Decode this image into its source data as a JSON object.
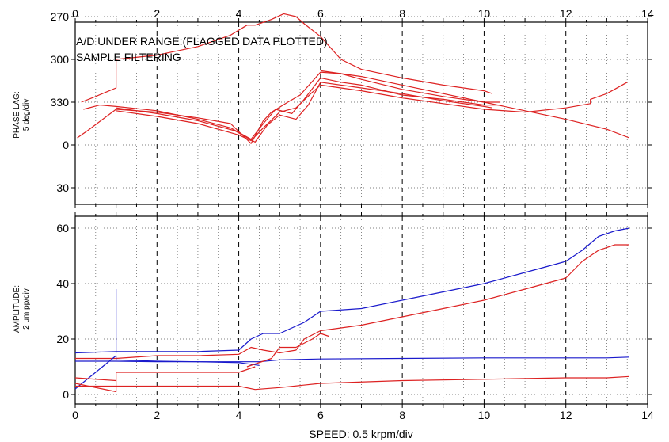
{
  "chart_data": [
    {
      "type": "line",
      "panel": "phase",
      "ylabel": "PHASE LAG:",
      "ylabel_sub": "5 deg/div",
      "annotations": [
        "A/D UNDER RANGE:(FLAGGED DATA PLOTTED)",
        "SAMPLE FILTERING"
      ],
      "x_ticks": [
        "0",
        "2",
        "4",
        "6",
        "8",
        "10",
        "12",
        "14"
      ],
      "xlim": [
        0,
        14
      ],
      "y_tick_labels": [
        "270",
        "300",
        "330",
        "0",
        "30"
      ],
      "y_axis_reversed": true,
      "series": [
        {
          "color": "#dd2222",
          "x": [
            0.15,
            0.5,
            1.0,
            1.0,
            2.0,
            3.0,
            3.8,
            4.2,
            4.4,
            4.8,
            5.1,
            5.4,
            5.6,
            6.0,
            6.5,
            7.0,
            8.0,
            9.0,
            10.0,
            10.2
          ],
          "y": [
            330,
            326,
            320,
            300,
            297,
            291,
            283,
            276,
            276,
            272,
            268,
            270,
            275,
            284,
            300,
            307,
            313,
            318,
            322,
            324
          ]
        },
        {
          "color": "#dd2222",
          "x": [
            0.05,
            0.3,
            1.0,
            2.0,
            3.0,
            3.8,
            4.3,
            4.6,
            4.8,
            5.2,
            5.5,
            6.0,
            6.5,
            7.0,
            8.0,
            9.0,
            10.0,
            10.4
          ],
          "y": [
            355,
            350,
            335,
            337,
            341,
            345,
            359,
            343,
            337,
            330,
            325,
            309,
            310,
            314,
            321,
            326,
            330,
            330
          ]
        },
        {
          "color": "#dd2222",
          "x": [
            0.2,
            0.6,
            1.0,
            2.0,
            3.0,
            3.8,
            4.3,
            4.6,
            4.9,
            5.3,
            5.6,
            6.0,
            6.5,
            7.0,
            8.0,
            9.0,
            10.0,
            10.4
          ],
          "y": [
            335,
            332,
            333,
            336,
            342,
            348,
            356,
            345,
            335,
            338,
            328,
            313,
            316,
            318,
            325,
            328,
            332,
            332
          ]
        },
        {
          "color": "#dd2222",
          "x": [
            1.0,
            2.0,
            3.0,
            3.9,
            4.4,
            4.7,
            5.0,
            5.4,
            5.7,
            6.0,
            7.0,
            8.0,
            9.0,
            10.0,
            10.2
          ],
          "y": [
            334,
            338,
            343,
            350,
            358,
            346,
            339,
            342,
            332,
            316,
            320,
            324,
            329,
            333,
            334
          ]
        },
        {
          "color": "#dd2222",
          "x": [
            1.0,
            2.0,
            3.0,
            4.0,
            4.3,
            4.6,
            5.0,
            5.4,
            5.8,
            6.0,
            7.0,
            8.0,
            9.0,
            10.0,
            11.0,
            12.0,
            12.6,
            12.6,
            13.0,
            13.5
          ],
          "y": [
            336,
            340,
            345,
            353,
            357,
            348,
            337,
            334,
            323,
            318,
            322,
            327,
            331,
            335,
            337,
            334,
            331,
            328,
            324,
            316
          ]
        },
        {
          "color": "#dd2222",
          "x": [
            6.0,
            7.0,
            8.0,
            9.0,
            10.0,
            11.0,
            12.0,
            13.0,
            13.55
          ],
          "y": [
            308,
            312,
            318,
            324,
            330,
            336,
            342,
            349,
            355
          ]
        }
      ]
    },
    {
      "type": "line",
      "panel": "amplitude",
      "ylabel": "AMPLITUDE:",
      "ylabel_sub": "2 um pp/div",
      "x_ticks": [
        "0",
        "2",
        "4",
        "6",
        "8",
        "10",
        "12",
        "14"
      ],
      "xlim": [
        0,
        14
      ],
      "y_tick_labels": [
        "0",
        "20",
        "40",
        "60"
      ],
      "ylim": [
        -2,
        62
      ],
      "xlabel": "SPEED: 0.5 krpm/div",
      "series": [
        {
          "color": "#1a1acc",
          "x": [
            0.0,
            1.0,
            2.0,
            3.0,
            4.0,
            4.3,
            4.6,
            5.0,
            5.3,
            5.6,
            6.0,
            7.0,
            8.0,
            9.0,
            10.0,
            11.0,
            12.0,
            12.4,
            12.8,
            13.2,
            13.55
          ],
          "y": [
            15,
            15.5,
            15.5,
            15.5,
            16,
            20,
            22,
            22,
            24,
            26,
            30,
            31,
            34,
            37,
            40,
            44,
            48,
            52,
            57,
            59,
            60
          ]
        },
        {
          "color": "#dd2222",
          "x": [
            0.0,
            1.0,
            2.0,
            3.0,
            4.0,
            4.3,
            4.6,
            5.0,
            5.4,
            5.6,
            6.0,
            7.0,
            8.0,
            9.0,
            10.0,
            11.0,
            12.0,
            12.4,
            12.8,
            13.2,
            13.55
          ],
          "y": [
            13,
            13,
            14,
            14,
            14.5,
            17,
            16,
            15,
            16,
            20,
            23,
            25,
            28,
            31,
            34,
            38,
            42,
            48,
            52,
            54,
            54
          ]
        },
        {
          "color": "#1a1acc",
          "x": [
            0.0,
            0.5,
            1.0,
            2.0,
            3.0,
            4.0,
            4.5,
            5.0,
            6.0,
            8.0,
            10.0,
            12.0,
            13.0,
            13.55
          ],
          "y": [
            12,
            12,
            12,
            11.8,
            11.8,
            11.8,
            11.8,
            12.5,
            12.8,
            13,
            13.2,
            13.2,
            13.2,
            13.5
          ]
        },
        {
          "color": "#1a1acc",
          "x": [
            0.0,
            0.5,
            1.0,
            1.0,
            2.0,
            3.0,
            4.0,
            4.5
          ],
          "y": [
            2,
            8,
            14,
            12.5,
            12,
            11.8,
            11.5,
            10.5
          ]
        },
        {
          "color": "#1a1acc",
          "x": [
            1.0,
            1.0
          ],
          "y": [
            15,
            38
          ]
        },
        {
          "color": "#dd2222",
          "x": [
            0.0,
            1.0,
            1.0,
            2.0,
            3.0,
            4.0,
            4.2,
            4.4
          ],
          "y": [
            6,
            5,
            8,
            8,
            8,
            8,
            9,
            10
          ]
        },
        {
          "color": "#dd2222",
          "x": [
            0.0,
            0.5,
            1.0,
            2.0,
            3.0,
            4.0,
            4.4,
            5.0,
            6.0,
            8.0,
            10.0,
            12.0,
            13.0,
            13.55
          ],
          "y": [
            3,
            3,
            3,
            3,
            3,
            3,
            1.8,
            2.5,
            4,
            5,
            5.5,
            6,
            6,
            6.5
          ]
        },
        {
          "color": "#dd2222",
          "x": [
            0.0,
            1.0,
            1.0
          ],
          "y": [
            4,
            1,
            5
          ]
        },
        {
          "color": "#dd2222",
          "x": [
            4.2,
            4.8,
            5.0,
            5.4,
            5.8,
            6.0,
            6.2
          ],
          "y": [
            10,
            13,
            17,
            17,
            20,
            22,
            21
          ]
        }
      ]
    }
  ]
}
